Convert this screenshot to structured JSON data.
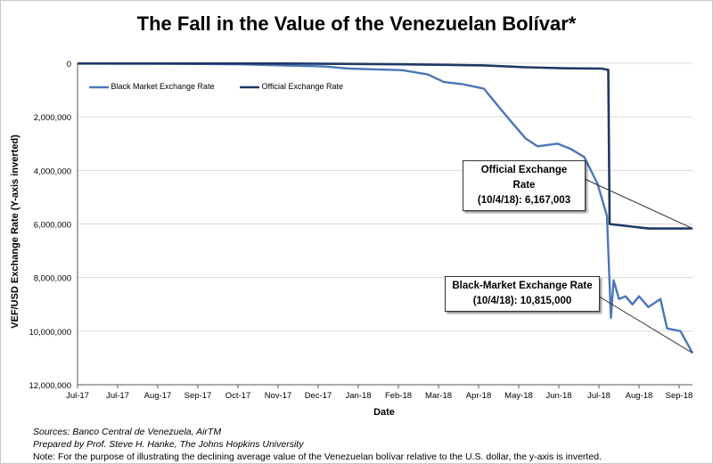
{
  "chart_data": {
    "type": "line",
    "title": "The Fall in the Value of the Venezuelan Bolívar*",
    "xlabel": "Date",
    "ylabel": "VEF/USD Exchange Rate (Y-axis inverted)",
    "y_inverted": true,
    "ylim": [
      0,
      12000000
    ],
    "yticks": [
      "0",
      "2,000,000",
      "4,000,000",
      "6,000,000",
      "8,000,000",
      "10,000,000",
      "12,000,000"
    ],
    "yticks_values": [
      0,
      2000000,
      4000000,
      6000000,
      8000000,
      10000000,
      12000000
    ],
    "xticks": [
      "Jul-17",
      "Jul-17",
      "Aug-17",
      "Sep-17",
      "Oct-17",
      "Nov-17",
      "Dec-17",
      "Jan-18",
      "Feb-18",
      "Mar-18",
      "Apr-18",
      "May-18",
      "Jun-18",
      "Jul-18",
      "Aug-18",
      "Sep-18"
    ],
    "legend": [
      "Black Market Exchange Rate",
      "Official Exchange Rate"
    ],
    "legend_position": "top-left",
    "grid": true,
    "series": [
      {
        "name": "Black Market Exchange Rate",
        "color": "#4a76b8",
        "points": [
          [
            "2017-07-01",
            8000
          ],
          [
            "2017-08-01",
            12000
          ],
          [
            "2017-09-01",
            18000
          ],
          [
            "2017-10-01",
            27000
          ],
          [
            "2017-11-01",
            40000
          ],
          [
            "2017-12-01",
            80000
          ],
          [
            "2018-01-01",
            120000
          ],
          [
            "2018-01-20",
            200000
          ],
          [
            "2018-02-10",
            230000
          ],
          [
            "2018-03-01",
            260000
          ],
          [
            "2018-03-20",
            420000
          ],
          [
            "2018-04-01",
            700000
          ],
          [
            "2018-04-15",
            780000
          ],
          [
            "2018-05-01",
            950000
          ],
          [
            "2018-05-10",
            1500000
          ],
          [
            "2018-05-20",
            2100000
          ],
          [
            "2018-06-01",
            2800000
          ],
          [
            "2018-06-10",
            3100000
          ],
          [
            "2018-06-25",
            3000000
          ],
          [
            "2018-07-05",
            3200000
          ],
          [
            "2018-07-15",
            3500000
          ],
          [
            "2018-07-25",
            4500000
          ],
          [
            "2018-08-01",
            5700000
          ],
          [
            "2018-08-04",
            9500000
          ],
          [
            "2018-08-06",
            8100000
          ],
          [
            "2018-08-10",
            8800000
          ],
          [
            "2018-08-15",
            8700000
          ],
          [
            "2018-08-20",
            9000000
          ],
          [
            "2018-08-25",
            8700000
          ],
          [
            "2018-09-01",
            9100000
          ],
          [
            "2018-09-10",
            8800000
          ],
          [
            "2018-09-15",
            9900000
          ],
          [
            "2018-09-25",
            10000000
          ],
          [
            "2018-10-04",
            10815000
          ]
        ]
      },
      {
        "name": "Official Exchange Rate",
        "color": "#1f3864",
        "points": [
          [
            "2017-07-01",
            10000
          ],
          [
            "2017-12-01",
            10000
          ],
          [
            "2018-03-01",
            40000
          ],
          [
            "2018-05-01",
            80000
          ],
          [
            "2018-06-01",
            150000
          ],
          [
            "2018-07-01",
            190000
          ],
          [
            "2018-07-28",
            200000
          ],
          [
            "2018-08-02",
            250000
          ],
          [
            "2018-08-03",
            6000000
          ],
          [
            "2018-08-20",
            6100000
          ],
          [
            "2018-09-01",
            6170000
          ],
          [
            "2018-10-04",
            6167003
          ]
        ]
      }
    ],
    "annotations": [
      {
        "line1": "Official Exchange Rate",
        "line2": "(10/4/18): 6,167,003"
      },
      {
        "line1": "Black-Market Exchange Rate",
        "line2": "(10/4/18): 10,815,000"
      }
    ]
  },
  "notes": {
    "sources": "Sources: Banco Central de Venezuela, AirTM",
    "prepared": "Prepared by Prof. Steve H. Hanke, The Johns Hopkins University",
    "note": "Note: For the purpose of illustrating the declining average value of the Venezuelan bolívar relative to the U.S. dollar, the y-axis is inverted."
  }
}
